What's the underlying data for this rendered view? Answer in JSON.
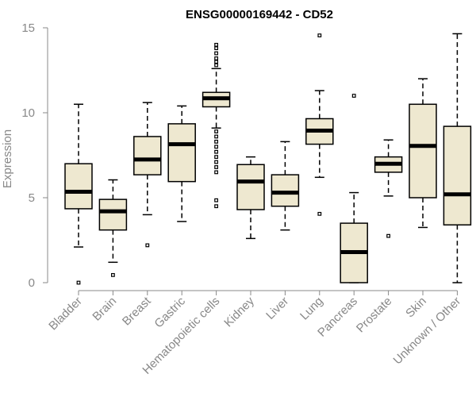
{
  "chart_data": {
    "type": "boxplot",
    "title": "ENSG00000169442 - CD52",
    "xlabel": "",
    "ylabel": "Expression",
    "ylim": [
      0,
      15
    ],
    "yticks": [
      0,
      5,
      10,
      15
    ],
    "box_fill": "#eee8d0",
    "categories": [
      "Bladder",
      "Brain",
      "Breast",
      "Gastric",
      "Hematopoietic cells",
      "Kidney",
      "Liver",
      "Lung",
      "Pancreas",
      "Prostate",
      "Skin",
      "Unknown / Other"
    ],
    "boxes": [
      {
        "min": 2.1,
        "q1": 4.35,
        "median": 5.35,
        "q3": 7.0,
        "max": 10.5,
        "outliers": [
          0.0
        ]
      },
      {
        "min": 1.2,
        "q1": 3.1,
        "median": 4.2,
        "q3": 4.9,
        "max": 6.05,
        "outliers": [
          0.45
        ]
      },
      {
        "min": 4.0,
        "q1": 6.35,
        "median": 7.25,
        "q3": 8.6,
        "max": 10.6,
        "outliers": [
          2.2
        ]
      },
      {
        "min": 3.6,
        "q1": 5.95,
        "median": 8.15,
        "q3": 9.35,
        "max": 10.4,
        "outliers": []
      },
      {
        "min": 9.1,
        "q1": 10.35,
        "median": 10.85,
        "q3": 11.2,
        "max": 12.6,
        "outliers": [
          4.5,
          4.85,
          6.5,
          6.8,
          7.1,
          7.4,
          7.7,
          8.0,
          8.3,
          8.6,
          8.9,
          12.8,
          13.0,
          13.2,
          13.5,
          13.8,
          14.0
        ]
      },
      {
        "min": 2.6,
        "q1": 4.3,
        "median": 5.95,
        "q3": 6.95,
        "max": 7.4,
        "outliers": []
      },
      {
        "min": 3.1,
        "q1": 4.5,
        "median": 5.3,
        "q3": 6.35,
        "max": 8.3,
        "outliers": []
      },
      {
        "min": 6.2,
        "q1": 8.15,
        "median": 8.95,
        "q3": 9.65,
        "max": 11.3,
        "outliers": [
          4.05,
          14.55
        ]
      },
      {
        "min": 0.0,
        "q1": 0.0,
        "median": 1.8,
        "q3": 3.5,
        "max": 5.3,
        "outliers": [
          11.0
        ]
      },
      {
        "min": 5.1,
        "q1": 6.5,
        "median": 7.0,
        "q3": 7.4,
        "max": 8.4,
        "outliers": [
          2.75
        ]
      },
      {
        "min": 3.25,
        "q1": 5.0,
        "median": 8.05,
        "q3": 10.5,
        "max": 12.0,
        "outliers": []
      },
      {
        "min": 0.0,
        "q1": 3.4,
        "median": 5.2,
        "q3": 9.2,
        "max": 14.65,
        "outliers": []
      }
    ]
  }
}
